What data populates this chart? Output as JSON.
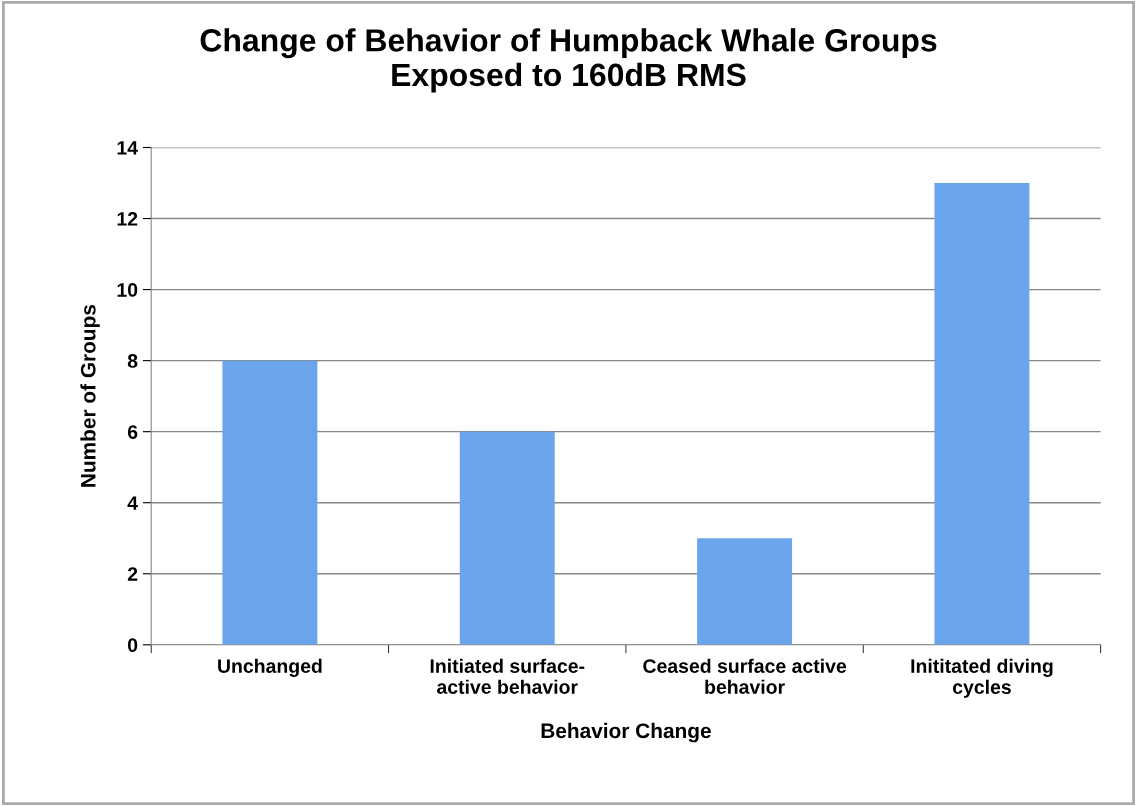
{
  "chart_data": {
    "type": "bar",
    "title": "Change of Behavior of Humpback Whale Groups\nExposed to 160dB RMS",
    "xlabel": "Behavior Change",
    "ylabel": "Number of Groups",
    "categories": [
      "Unchanged",
      "Initiated surface-\nactive behavior",
      "Ceased surface active\nbehavior",
      "Inititated diving\ncycles"
    ],
    "values": [
      8,
      6,
      3,
      13
    ],
    "color": "#6aa5ec",
    "ylim": [
      0,
      14
    ],
    "yticks": [
      0,
      2,
      4,
      6,
      8,
      10,
      12,
      14
    ],
    "grid": "y",
    "legend": false
  }
}
